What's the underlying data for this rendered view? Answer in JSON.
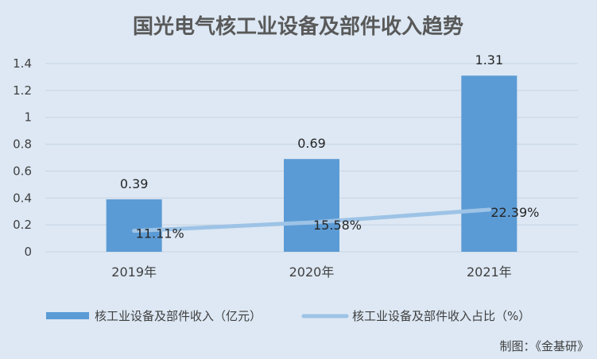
{
  "chart_data": {
    "type": "bar",
    "title": "国光电气核工业设备及部件收入趋势",
    "categories": [
      "2019年",
      "2020年",
      "2021年"
    ],
    "ylim": [
      0,
      1.4
    ],
    "yticks": [
      "0",
      "0.2",
      "0.4",
      "0.6",
      "0.8",
      "1",
      "1.2",
      "1.4"
    ],
    "grid": true,
    "legend_position": "bottom",
    "series": [
      {
        "name": "核工业设备及部件收入（亿元）",
        "type": "bar",
        "axis": "primary",
        "values": [
          0.39,
          0.69,
          1.31
        ],
        "labels": [
          "0.39",
          "0.69",
          "1.31"
        ],
        "color": "#5b9bd5"
      },
      {
        "name": "核工业设备及部件收入占比（%）",
        "type": "line",
        "axis": "secondary",
        "values": [
          11.11,
          15.58,
          22.39
        ],
        "labels": [
          "11.11%",
          "15.58%",
          "22.39%"
        ],
        "color": "#9dc3e6"
      }
    ],
    "secondary_ylim": [
      0,
      100
    ]
  },
  "source": "制图：《金基研》"
}
